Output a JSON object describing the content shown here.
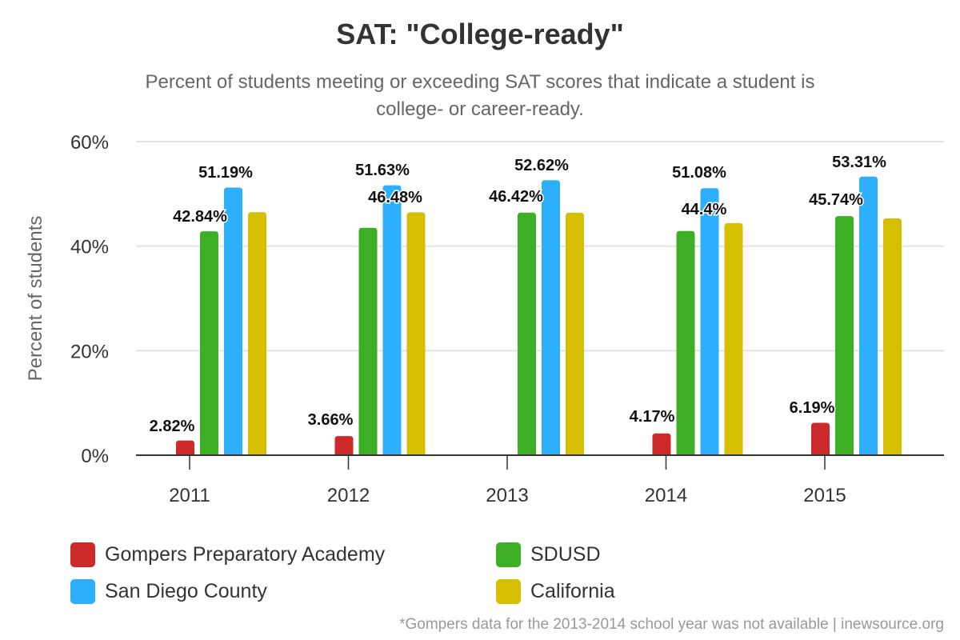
{
  "chart_data": {
    "type": "bar",
    "title": "SAT: \"College-ready\"",
    "subtitle": "Percent of students meeting or exceeding SAT scores that indicate a student is college- or career-ready.",
    "xlabel": "",
    "ylabel": "Percent of students",
    "ylim": [
      0,
      60
    ],
    "yticks": [
      "0%",
      "20%",
      "40%",
      "60%"
    ],
    "ytick_values": [
      0,
      20,
      40,
      60
    ],
    "grid": true,
    "categories": [
      "2011",
      "2012",
      "2013",
      "2014",
      "2015"
    ],
    "series": [
      {
        "name": "Gompers Preparatory Academy",
        "color": "#cc2a2a",
        "values": [
          2.82,
          3.66,
          null,
          4.17,
          6.19
        ],
        "labels": [
          "2.82%",
          "3.66%",
          null,
          "4.17%",
          "6.19%"
        ]
      },
      {
        "name": "SDUSD",
        "color": "#3daf24",
        "values": [
          42.84,
          43.5,
          46.42,
          42.9,
          45.74
        ],
        "labels": [
          "42.84%",
          null,
          "46.42%",
          null,
          "45.74%"
        ]
      },
      {
        "name": "San Diego County",
        "color": "#2eaffc",
        "values": [
          51.19,
          51.63,
          52.62,
          51.08,
          53.31
        ],
        "labels": [
          "51.19%",
          "51.63%",
          "52.62%",
          "51.08%",
          "53.31%"
        ]
      },
      {
        "name": "California",
        "color": "#d6bf00",
        "values": [
          46.5,
          46.48,
          46.4,
          44.4,
          45.3
        ],
        "labels": [
          null,
          "46.48%",
          null,
          "44.4%",
          null
        ]
      }
    ],
    "legend_position": "bottom",
    "footnote": "*Gompers data for the 2013-2014 school year was not available | inewsource.org"
  }
}
